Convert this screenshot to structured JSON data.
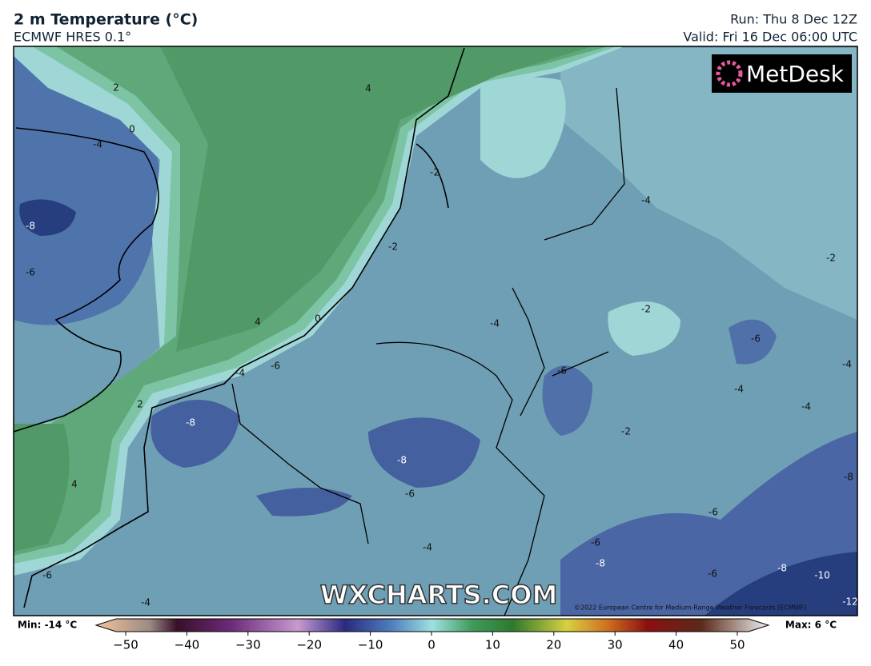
{
  "header": {
    "title": "2 m Temperature (°C)",
    "subtitle": "ECMWF HRES 0.1°",
    "run": "Run: Thu 8 Dec 12Z",
    "valid": "Valid: Fri 16 Dec 06:00 UTC"
  },
  "map": {
    "logo": "MetDesk",
    "watermark": "WXCHARTS.COM",
    "copyright": "©2022 European Centre for Medium-Range Weather Forecasts (ECMWF)",
    "contour_labels": [
      2,
      0,
      -4,
      4,
      -2,
      -4,
      -2,
      -2,
      -8,
      -6,
      4,
      0,
      -4,
      -2,
      -6,
      -4,
      -6,
      -6,
      -4,
      -4,
      -4,
      2,
      -8,
      -2,
      -8,
      4,
      -6,
      -8,
      -6,
      -4,
      -6,
      -8,
      -6,
      -8,
      -10,
      -6,
      -4,
      -12
    ]
  },
  "colorbar": {
    "min_label": "Min: -14 °C",
    "max_label": "Max: 6 °C",
    "range": [
      -50,
      50
    ],
    "ticks": [
      {
        "value": -50,
        "label": "−50"
      },
      {
        "value": -40,
        "label": "−40"
      },
      {
        "value": -30,
        "label": "−30"
      },
      {
        "value": -20,
        "label": "−20"
      },
      {
        "value": -10,
        "label": "−10"
      },
      0,
      10,
      20,
      30,
      40,
      50
    ]
  }
}
